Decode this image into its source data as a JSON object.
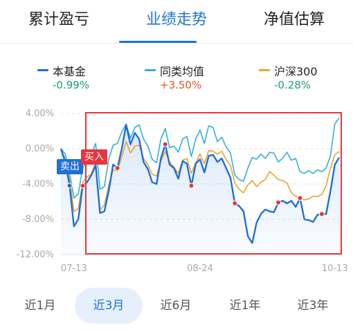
{
  "tabs": [
    {
      "label": "累计盈亏",
      "active": false
    },
    {
      "label": "业绩走势",
      "active": true
    },
    {
      "label": "净值估算",
      "active": false
    }
  ],
  "legend": [
    {
      "name": "本基金",
      "value": "-0.99%",
      "color": "#1e6fd9",
      "value_color": "#1a9e6e"
    },
    {
      "name": "同类均值",
      "value": "+3.50%",
      "color": "#2fb0d8",
      "value_color": "#e0542d"
    },
    {
      "name": "沪深300",
      "value": "-0.28%",
      "color": "#e8a32a",
      "value_color": "#1a9e6e"
    }
  ],
  "markers": {
    "sell_label": "卖出",
    "buy_label": "买入",
    "sell_color": "#1e6fd9",
    "buy_color": "#e8353e"
  },
  "periods": [
    {
      "label": "近1月",
      "active": false
    },
    {
      "label": "近3月",
      "active": true
    },
    {
      "label": "近6月",
      "active": false
    },
    {
      "label": "近1年",
      "active": false
    },
    {
      "label": "近3年",
      "active": false
    }
  ],
  "chart_data": {
    "type": "line",
    "y_ticks": [
      "4.00%",
      "0.00%",
      "-4.00%",
      "-8.00%",
      "-12.00%"
    ],
    "y_tick_values": [
      4,
      0,
      -4,
      -8,
      -12
    ],
    "ylim": [
      -12,
      4
    ],
    "x_tick_labels": [
      {
        "label": "07-13",
        "index": 3
      },
      {
        "label": "08-24",
        "index": 32
      },
      {
        "label": "10-13",
        "index": 63
      }
    ],
    "grid": true,
    "highlight_box_color": "#e8353e",
    "series": [
      {
        "name": "本基金",
        "color": "#1e6fd9",
        "values": [
          0,
          -1.5,
          -4.2,
          -8.8,
          -8.0,
          -4.2,
          -3.8,
          -3.0,
          -1.9,
          -7.3,
          -7.1,
          -4.8,
          -1.8,
          -2.2,
          0,
          2.7,
          0.5,
          1.8,
          1.1,
          -1.5,
          -2.3,
          -3.8,
          -4.0,
          -1.1,
          0.5,
          -1.8,
          -2.2,
          -3.4,
          -1.4,
          -1.7,
          -4.2,
          -1.7,
          -1.2,
          -2.7,
          -0.8,
          -0.7,
          -1.5,
          -1.1,
          -2.2,
          -3.3,
          -6.2,
          -6.5,
          -7.1,
          -9.9,
          -10.7,
          -8.4,
          -7.4,
          -6.9,
          -7.1,
          -7.2,
          -6.1,
          -5.9,
          -6.2,
          -5.9,
          -6.6,
          -5.6,
          -8.0,
          -8.1,
          -8.3,
          -7.5,
          -7.4,
          -7.4,
          -4.8,
          -1.8,
          -1.0
        ]
      },
      {
        "name": "同类均值",
        "color": "#2fb0d8",
        "values": [
          0,
          -0.6,
          -2.8,
          -5.6,
          -5.1,
          -2.2,
          -1.4,
          -0.6,
          0.6,
          -4.6,
          -4.3,
          -1.2,
          0.4,
          0.6,
          1.9,
          2.8,
          1.2,
          2.4,
          2.7,
          1.1,
          0.3,
          -1.2,
          -1.6,
          1.1,
          2.3,
          0.1,
          0.3,
          -0.4,
          1.1,
          1.4,
          -0.9,
          1.1,
          2.1,
          0.6,
          2.6,
          2.4,
          0.8,
          1.3,
          0.2,
          -0.5,
          -3.0,
          -3.5,
          -3.7,
          -2.2,
          -1.0,
          -1.2,
          -0.6,
          -1.1,
          -0.4,
          -0.5,
          -1.5,
          -1.1,
          -0.4,
          -1.3,
          -1.1,
          -2.6,
          -2.8,
          -2.5,
          -2.8,
          -2.4,
          -2.6,
          -2.2,
          -0.8,
          2.8,
          3.5
        ]
      },
      {
        "name": "沪深300",
        "color": "#e8a32a",
        "values": [
          0,
          -1.2,
          -3.5,
          -7.1,
          -6.8,
          -3.8,
          -3.2,
          -2.9,
          -1.5,
          -6.9,
          -6.4,
          -4.1,
          -2.4,
          -2.5,
          -0.9,
          0.8,
          -0.5,
          0.3,
          0.4,
          -1.1,
          -1.8,
          -2.9,
          -3.1,
          -1.4,
          -0.3,
          -1.5,
          -2.1,
          -2.8,
          -1.3,
          -1.1,
          -2.8,
          -1.6,
          -0.6,
          -1.7,
          -0.2,
          -0.3,
          -0.6,
          -0.3,
          -1.2,
          -1.9,
          -3.9,
          -4.6,
          -5.0,
          -4.1,
          -3.6,
          -4.3,
          -3.8,
          -3.5,
          -2.6,
          -3.0,
          -3.5,
          -3.6,
          -3.9,
          -5.0,
          -5.4,
          -5.6,
          -5.8,
          -5.7,
          -5.4,
          -5.4,
          -5.2,
          -4.2,
          -2.2,
          -0.7,
          -0.3
        ]
      }
    ],
    "sell_points": [
      2
    ],
    "buy_points": [
      5,
      13,
      24,
      30,
      40,
      50,
      55,
      60
    ],
    "buy_badge_index": 5,
    "sell_badge_index": 2
  }
}
